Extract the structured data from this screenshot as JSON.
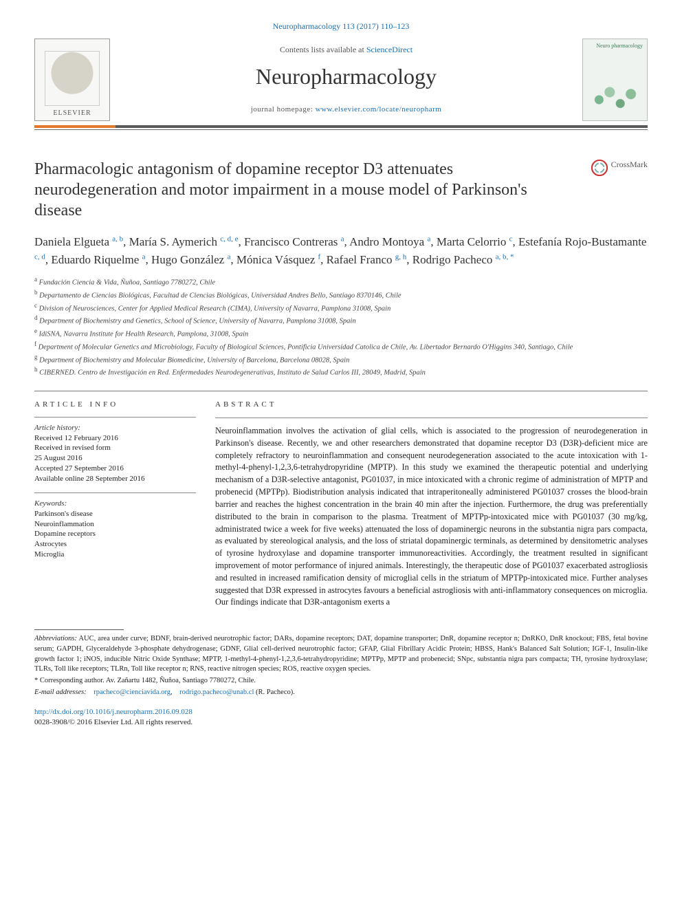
{
  "top_ref": {
    "prefix": "Neuropharmacology 113 (2017) 110–123"
  },
  "masthead": {
    "contents_line_pre": "Contents lists available at ",
    "contents_line_link": "ScienceDirect",
    "journal": "Neuropharmacology",
    "home_pre": "journal homepage: ",
    "home_url": "www.elsevier.com/locate/neuropharm",
    "publisher": "ELSEVIER",
    "cover_title": "Neuro\npharmacology",
    "colors": {
      "orange": "#e17a2f",
      "gray": "#5a5a5a"
    }
  },
  "crossmark": "CrossMark",
  "title": "Pharmacologic antagonism of dopamine receptor D3 attenuates neurodegeneration and motor impairment in a mouse model of Parkinson's disease",
  "authors_line": "Daniela Elgueta {a, b}, María S. Aymerich {c, d, e}, Francisco Contreras {a}, Andro Montoya {a}, Marta Celorrio {c}, Estefanía Rojo-Bustamante {c, d}, Eduardo Riquelme {a}, Hugo González {a}, Mónica Vásquez {f}, Rafael Franco {g, h}, Rodrigo Pacheco {a, b, *}",
  "affiliations": [
    {
      "s": "a",
      "t": "Fundación Ciencia & Vida, Ñuñoa, Santiago 7780272, Chile"
    },
    {
      "s": "b",
      "t": "Departamento de Ciencias Biológicas, Facultad de Ciencias Biológicas, Universidad Andres Bello, Santiago 8370146, Chile"
    },
    {
      "s": "c",
      "t": "Division of Neurosciences, Center for Applied Medical Research (CIMA), University of Navarra, Pamplona 31008, Spain"
    },
    {
      "s": "d",
      "t": "Department of Biochemistry and Genetics, School of Science, University of Navarra, Pamplona 31008, Spain"
    },
    {
      "s": "e",
      "t": "IdiSNA, Navarra Institute for Health Research, Pamplona, 31008, Spain"
    },
    {
      "s": "f",
      "t": "Department of Molecular Genetics and Microbiology, Faculty of Biological Sciences, Pontificia Universidad Catolica de Chile, Av. Libertador Bernardo O'Higgins 340, Santiago, Chile"
    },
    {
      "s": "g",
      "t": "Department of Biochemistry and Molecular Biomedicine, University of Barcelona, Barcelona 08028, Spain"
    },
    {
      "s": "h",
      "t": "CIBERNED. Centro de Investigación en Red. Enfermedades Neurodegenerativas, Instituto de Salud Carlos III, 28049, Madrid, Spain"
    }
  ],
  "info": {
    "head": "ARTICLE INFO",
    "history_label": "Article history:",
    "history": [
      "Received 12 February 2016",
      "Received in revised form",
      "25 August 2016",
      "Accepted 27 September 2016",
      "Available online 28 September 2016"
    ],
    "kw_label": "Keywords:",
    "keywords": [
      "Parkinson's disease",
      "Neuroinflammation",
      "Dopamine receptors",
      "Astrocytes",
      "Microglia"
    ]
  },
  "abstract": {
    "head": "ABSTRACT",
    "body": "Neuroinflammation involves the activation of glial cells, which is associated to the progression of neurodegeneration in Parkinson's disease. Recently, we and other researchers demonstrated that dopamine receptor D3 (D3R)-deficient mice are completely refractory to neuroinflammation and consequent neurodegeneration associated to the acute intoxication with 1-methyl-4-phenyl-1,2,3,6-tetrahydropyridine (MPTP). In this study we examined the therapeutic potential and underlying mechanism of a D3R-selective antagonist, PG01037, in mice intoxicated with a chronic regime of administration of MPTP and probenecid (MPTPp). Biodistribution analysis indicated that intraperitoneally administered PG01037 crosses the blood-brain barrier and reaches the highest concentration in the brain 40 min after the injection. Furthermore, the drug was preferentially distributed to the brain in comparison to the plasma. Treatment of MPTPp-intoxicated mice with PG01037 (30 mg/kg, administrated twice a week for five weeks) attenuated the loss of dopaminergic neurons in the substantia nigra pars compacta, as evaluated by stereological analysis, and the loss of striatal dopaminergic terminals, as determined by densitometric analyses of tyrosine hydroxylase and dopamine transporter immunoreactivities. Accordingly, the treatment resulted in significant improvement of motor performance of injured animals. Interestingly, the therapeutic dose of PG01037 exacerbated astrogliosis and resulted in increased ramification density of microglial cells in the striatum of MPTPp-intoxicated mice. Further analyses suggested that D3R expressed in astrocytes favours a beneficial astrogliosis with anti-inflammatory consequences on microglia. Our findings indicate that D3R-antagonism exerts a"
  },
  "footnotes": {
    "abbrev_label": "Abbreviations:",
    "abbrev_text": " AUC, area under curve; BDNF, brain-derived neurotrophic factor; DARs, dopamine receptors; DAT, dopamine transporter; DnR, dopamine receptor n; DnRKO, DnR knockout; FBS, fetal bovine serum; GAPDH, Glyceraldehyde 3-phosphate dehydrogenase; GDNF, Glial cell-derived neurotrophic factor; GFAP, Glial Fibrillary Acidic Protein; HBSS, Hank's Balanced Salt Solution; IGF-1, Insulin-like growth factor 1; iNOS, inducible Nitric Oxide Synthase; MPTP, 1-methyl-4-phenyl-1,2,3,6-tetrahydropyridine; MPTPp, MPTP and probenecid; SNpc, substantia nigra pars compacta; TH, tyrosine hydroxylase; TLRs, Toll like receptors; TLRn, Toll like receptor n; RNS, reactive nitrogen species; ROS, reactive oxygen species.",
    "corr_label": "* Corresponding author. ",
    "corr_text": "Av. Zañartu 1482, Ñuñoa, Santiago 7780272, Chile.",
    "email_label": "E-mail addresses:",
    "email1": "rpacheco@cienciavida.org",
    "email_sep": ", ",
    "email2": "rodrigo.pacheco@unab.cl",
    "email_tail": " (R. Pacheco)."
  },
  "doi": {
    "url": "http://dx.doi.org/10.1016/j.neuropharm.2016.09.028",
    "issn_line": "0028-3908/© 2016 Elsevier Ltd. All rights reserved."
  },
  "link_color": "#1a6fb5"
}
